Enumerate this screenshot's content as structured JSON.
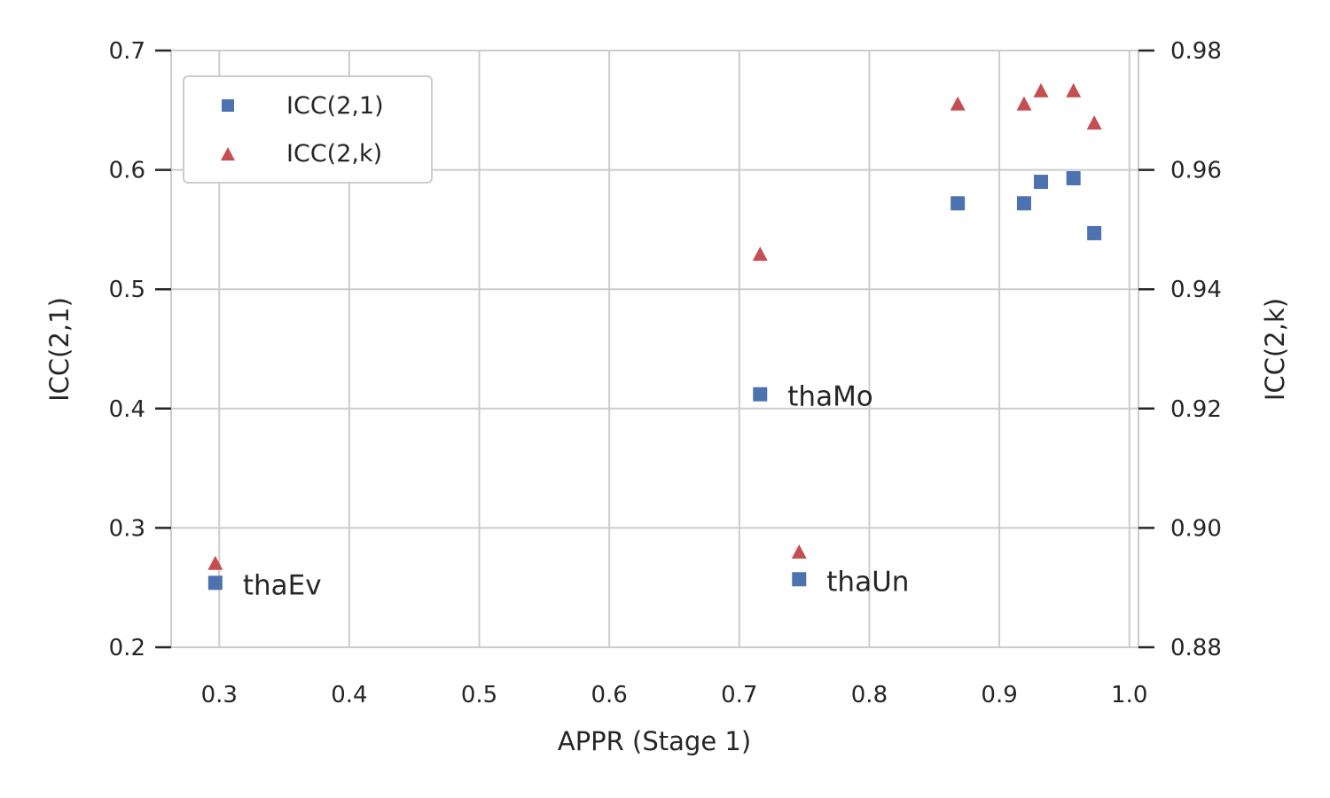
{
  "chart_data": {
    "type": "scatter",
    "title": "",
    "xlabel": "APPR (Stage 1)",
    "ylabel": "ICC(2,1)",
    "y2label": "ICC(2,k)",
    "xlim": [
      0.263,
      1.007
    ],
    "ylim": [
      0.2,
      0.7
    ],
    "y2lim": [
      0.88,
      0.98
    ],
    "xticks": [
      "0.3",
      "0.4",
      "0.5",
      "0.6",
      "0.7",
      "0.8",
      "0.9",
      "1.0"
    ],
    "yticks": [
      "0.2",
      "0.3",
      "0.4",
      "0.5",
      "0.6",
      "0.7"
    ],
    "y2ticks": [
      "0.88",
      "0.90",
      "0.92",
      "0.94",
      "0.96",
      "0.98"
    ],
    "grid": true,
    "legend_position": "top-left",
    "series": [
      {
        "name": "ICC(2,1)",
        "axis": "left",
        "marker": "square",
        "color": "#4c72b0",
        "x": [
          0.297,
          0.716,
          0.746,
          0.868,
          0.919,
          0.932,
          0.957,
          0.973
        ],
        "y": [
          0.254,
          0.412,
          0.257,
          0.572,
          0.572,
          0.59,
          0.593,
          0.547
        ]
      },
      {
        "name": "ICC(2,k)",
        "axis": "right",
        "marker": "triangle",
        "color": "#c44e52",
        "x": [
          0.297,
          0.716,
          0.746,
          0.868,
          0.919,
          0.932,
          0.957,
          0.973
        ],
        "y": [
          0.894,
          0.9458,
          0.8959,
          0.971,
          0.971,
          0.9732,
          0.9732,
          0.9678
        ]
      }
    ],
    "annotations": [
      {
        "text": "thaEv",
        "x": 0.297,
        "y": 0.254
      },
      {
        "text": "thaMo",
        "x": 0.716,
        "y": 0.412
      },
      {
        "text": "thaUn",
        "x": 0.746,
        "y": 0.257
      }
    ]
  }
}
